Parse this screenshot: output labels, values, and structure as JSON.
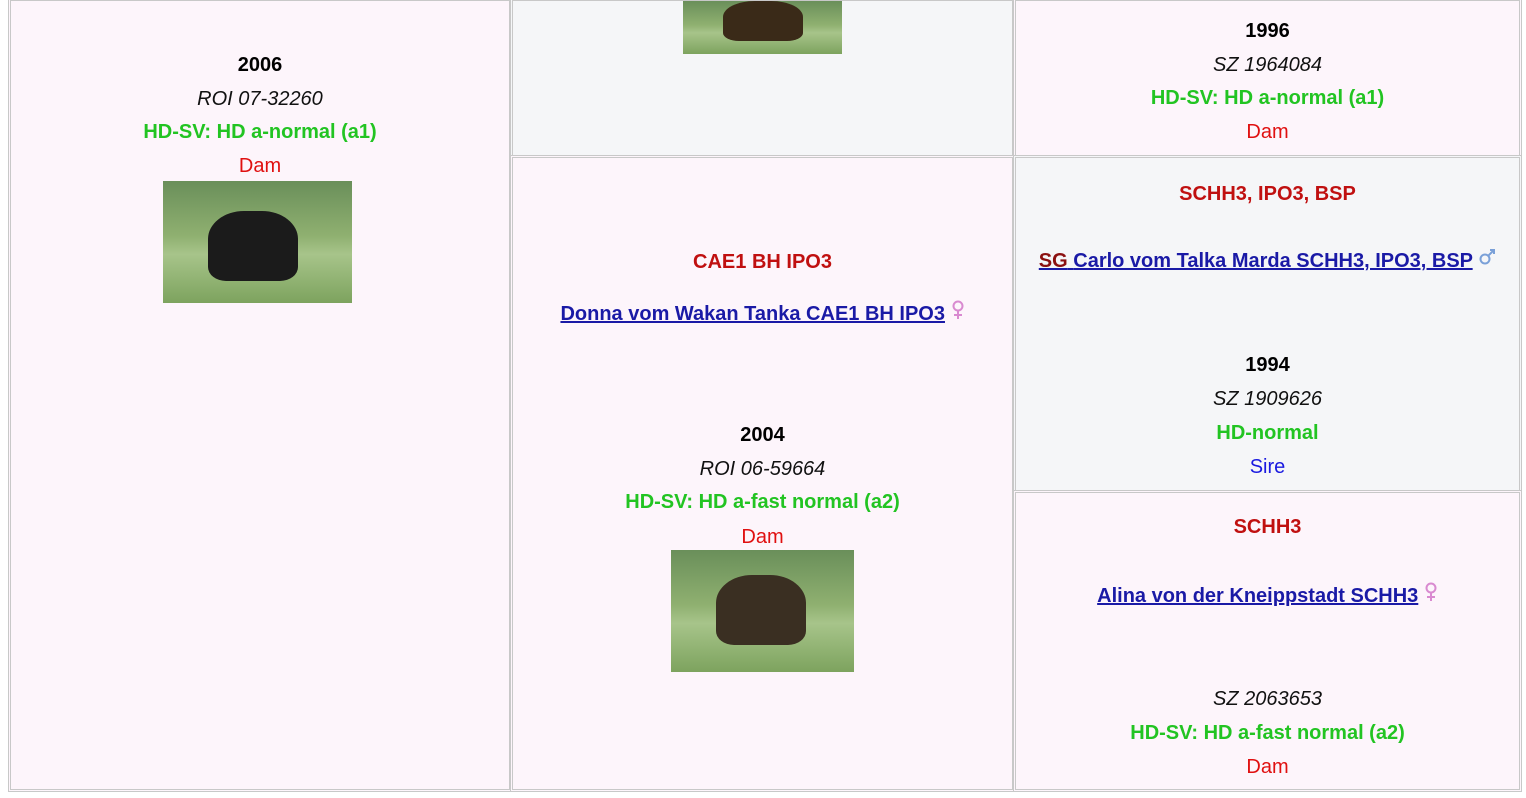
{
  "pedigree": {
    "cells": [
      {
        "year": "2006",
        "reg": "ROI 07-32260",
        "hd": "HD-SV: HD a-normal (a1)",
        "role": "Dam"
      },
      {},
      {
        "title": "CAE1 BH IPO3",
        "link": "Donna vom Wakan Tanka CAE1 BH IPO3",
        "year": "2004",
        "reg": "ROI 06-59664",
        "hd": "HD-SV: HD a-fast normal (a2)",
        "role": "Dam"
      },
      {
        "year": "1996",
        "reg": "SZ 1964084",
        "hd": "HD-SV: HD a-normal (a1)",
        "role": "Dam"
      },
      {
        "title": "SCHH3, IPO3, BSP",
        "link_prefix": "SG",
        "link": "Carlo vom Talka Marda SCHH3, IPO3, BSP",
        "year": "1994",
        "reg": "SZ 1909626",
        "hd": "HD-normal",
        "role": "Sire"
      },
      {
        "title": "SCHH3",
        "link": "Alina von der Kneippstadt SCHH3",
        "reg": "SZ 2063653",
        "hd": "HD-SV: HD a-fast normal (a2)",
        "role": "Dam"
      }
    ]
  }
}
